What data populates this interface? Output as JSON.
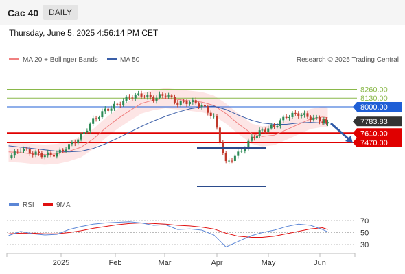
{
  "header": {
    "symbol": "Cac 40",
    "period": "DAILY",
    "timestamp": "Thursday, June 5, 2025 4:56:14 PM CET"
  },
  "legend": {
    "main": [
      {
        "label": "MA 20 + Bollinger Bands",
        "color": "#f08080"
      },
      {
        "label": "MA 50",
        "color": "#3a5ea8"
      }
    ],
    "rsi": [
      {
        "label": "RSI",
        "color": "#5b86d6"
      },
      {
        "label": "9MA",
        "color": "#e01010"
      }
    ],
    "copyright": "Research © 2025 Trading Central"
  },
  "colors": {
    "up": "#2e8b57",
    "down": "#c0392b",
    "support": "#e00000",
    "resistance": "#1f5fd6",
    "target": "#8ab84a"
  },
  "chart_data": [
    {
      "type": "candlestick",
      "title": "Cac 40",
      "ylim": [
        6900,
        8550
      ],
      "x": [
        "2024-12-02",
        "2024-12-09",
        "2024-12-16",
        "2024-12-23",
        "2024-12-30",
        "2025-01-06",
        "2025-01-13",
        "2025-01-20",
        "2025-01-27",
        "2025-02-03",
        "2025-02-10",
        "2025-02-17",
        "2025-02-24",
        "2025-03-03",
        "2025-03-10",
        "2025-03-17",
        "2025-03-24",
        "2025-03-31",
        "2025-04-07",
        "2025-04-14",
        "2025-04-22",
        "2025-04-28",
        "2025-05-05",
        "2025-05-12",
        "2025-05-19",
        "2025-05-26",
        "2025-06-02",
        "2025-06-05"
      ],
      "close": [
        7240,
        7380,
        7310,
        7280,
        7300,
        7420,
        7560,
        7800,
        7950,
        8030,
        8150,
        8180,
        8120,
        8190,
        8050,
        8080,
        8020,
        7840,
        7160,
        7300,
        7530,
        7650,
        7710,
        7860,
        7900,
        7840,
        7790,
        7783.83
      ],
      "series": [
        {
          "name": "MA 20 + Bollinger Bands",
          "values": [
            7330,
            7320,
            7300,
            7290,
            7300,
            7340,
            7400,
            7520,
            7680,
            7820,
            7940,
            8050,
            8100,
            8130,
            8110,
            8090,
            8070,
            8020,
            7900,
            7750,
            7600,
            7560,
            7580,
            7660,
            7740,
            7820,
            7850,
            7840
          ]
        },
        {
          "name": "MA 50",
          "values": [
            7420,
            7400,
            7380,
            7360,
            7340,
            7330,
            7340,
            7380,
            7450,
            7530,
            7620,
            7710,
            7790,
            7860,
            7920,
            7970,
            8000,
            8010,
            7960,
            7880,
            7800,
            7760,
            7740,
            7740,
            7760,
            7770,
            7760,
            7750
          ]
        }
      ],
      "levels": [
        {
          "value": 8260.0,
          "label": "8260.00",
          "kind": "target"
        },
        {
          "value": 8130.0,
          "label": "8130.00",
          "kind": "target"
        },
        {
          "value": 8000.0,
          "label": "8000.00",
          "kind": "pivot"
        },
        {
          "value": 7783.83,
          "label": "7783.83",
          "kind": "last"
        },
        {
          "value": 7610.0,
          "label": "7610.00",
          "kind": "support"
        },
        {
          "value": 7470.0,
          "label": "7470.00",
          "kind": "support"
        }
      ],
      "xticks": [
        "2025",
        "Feb",
        "Mar",
        "Apr",
        "May",
        "Jun"
      ]
    },
    {
      "type": "line",
      "title": "RSI",
      "ylim": [
        20,
        80
      ],
      "yticks": [
        70,
        50,
        30
      ],
      "series": [
        {
          "name": "RSI",
          "values": [
            45,
            52,
            48,
            46,
            47,
            55,
            60,
            64,
            66,
            67,
            68,
            66,
            62,
            63,
            55,
            56,
            54,
            46,
            26,
            35,
            45,
            50,
            54,
            60,
            64,
            62,
            55,
            51
          ]
        },
        {
          "name": "9MA",
          "values": [
            48,
            49,
            49,
            48,
            48,
            50,
            53,
            57,
            60,
            63,
            65,
            66,
            65,
            64,
            62,
            61,
            59,
            56,
            49,
            44,
            42,
            42,
            44,
            48,
            52,
            56,
            58,
            55
          ]
        }
      ]
    }
  ]
}
